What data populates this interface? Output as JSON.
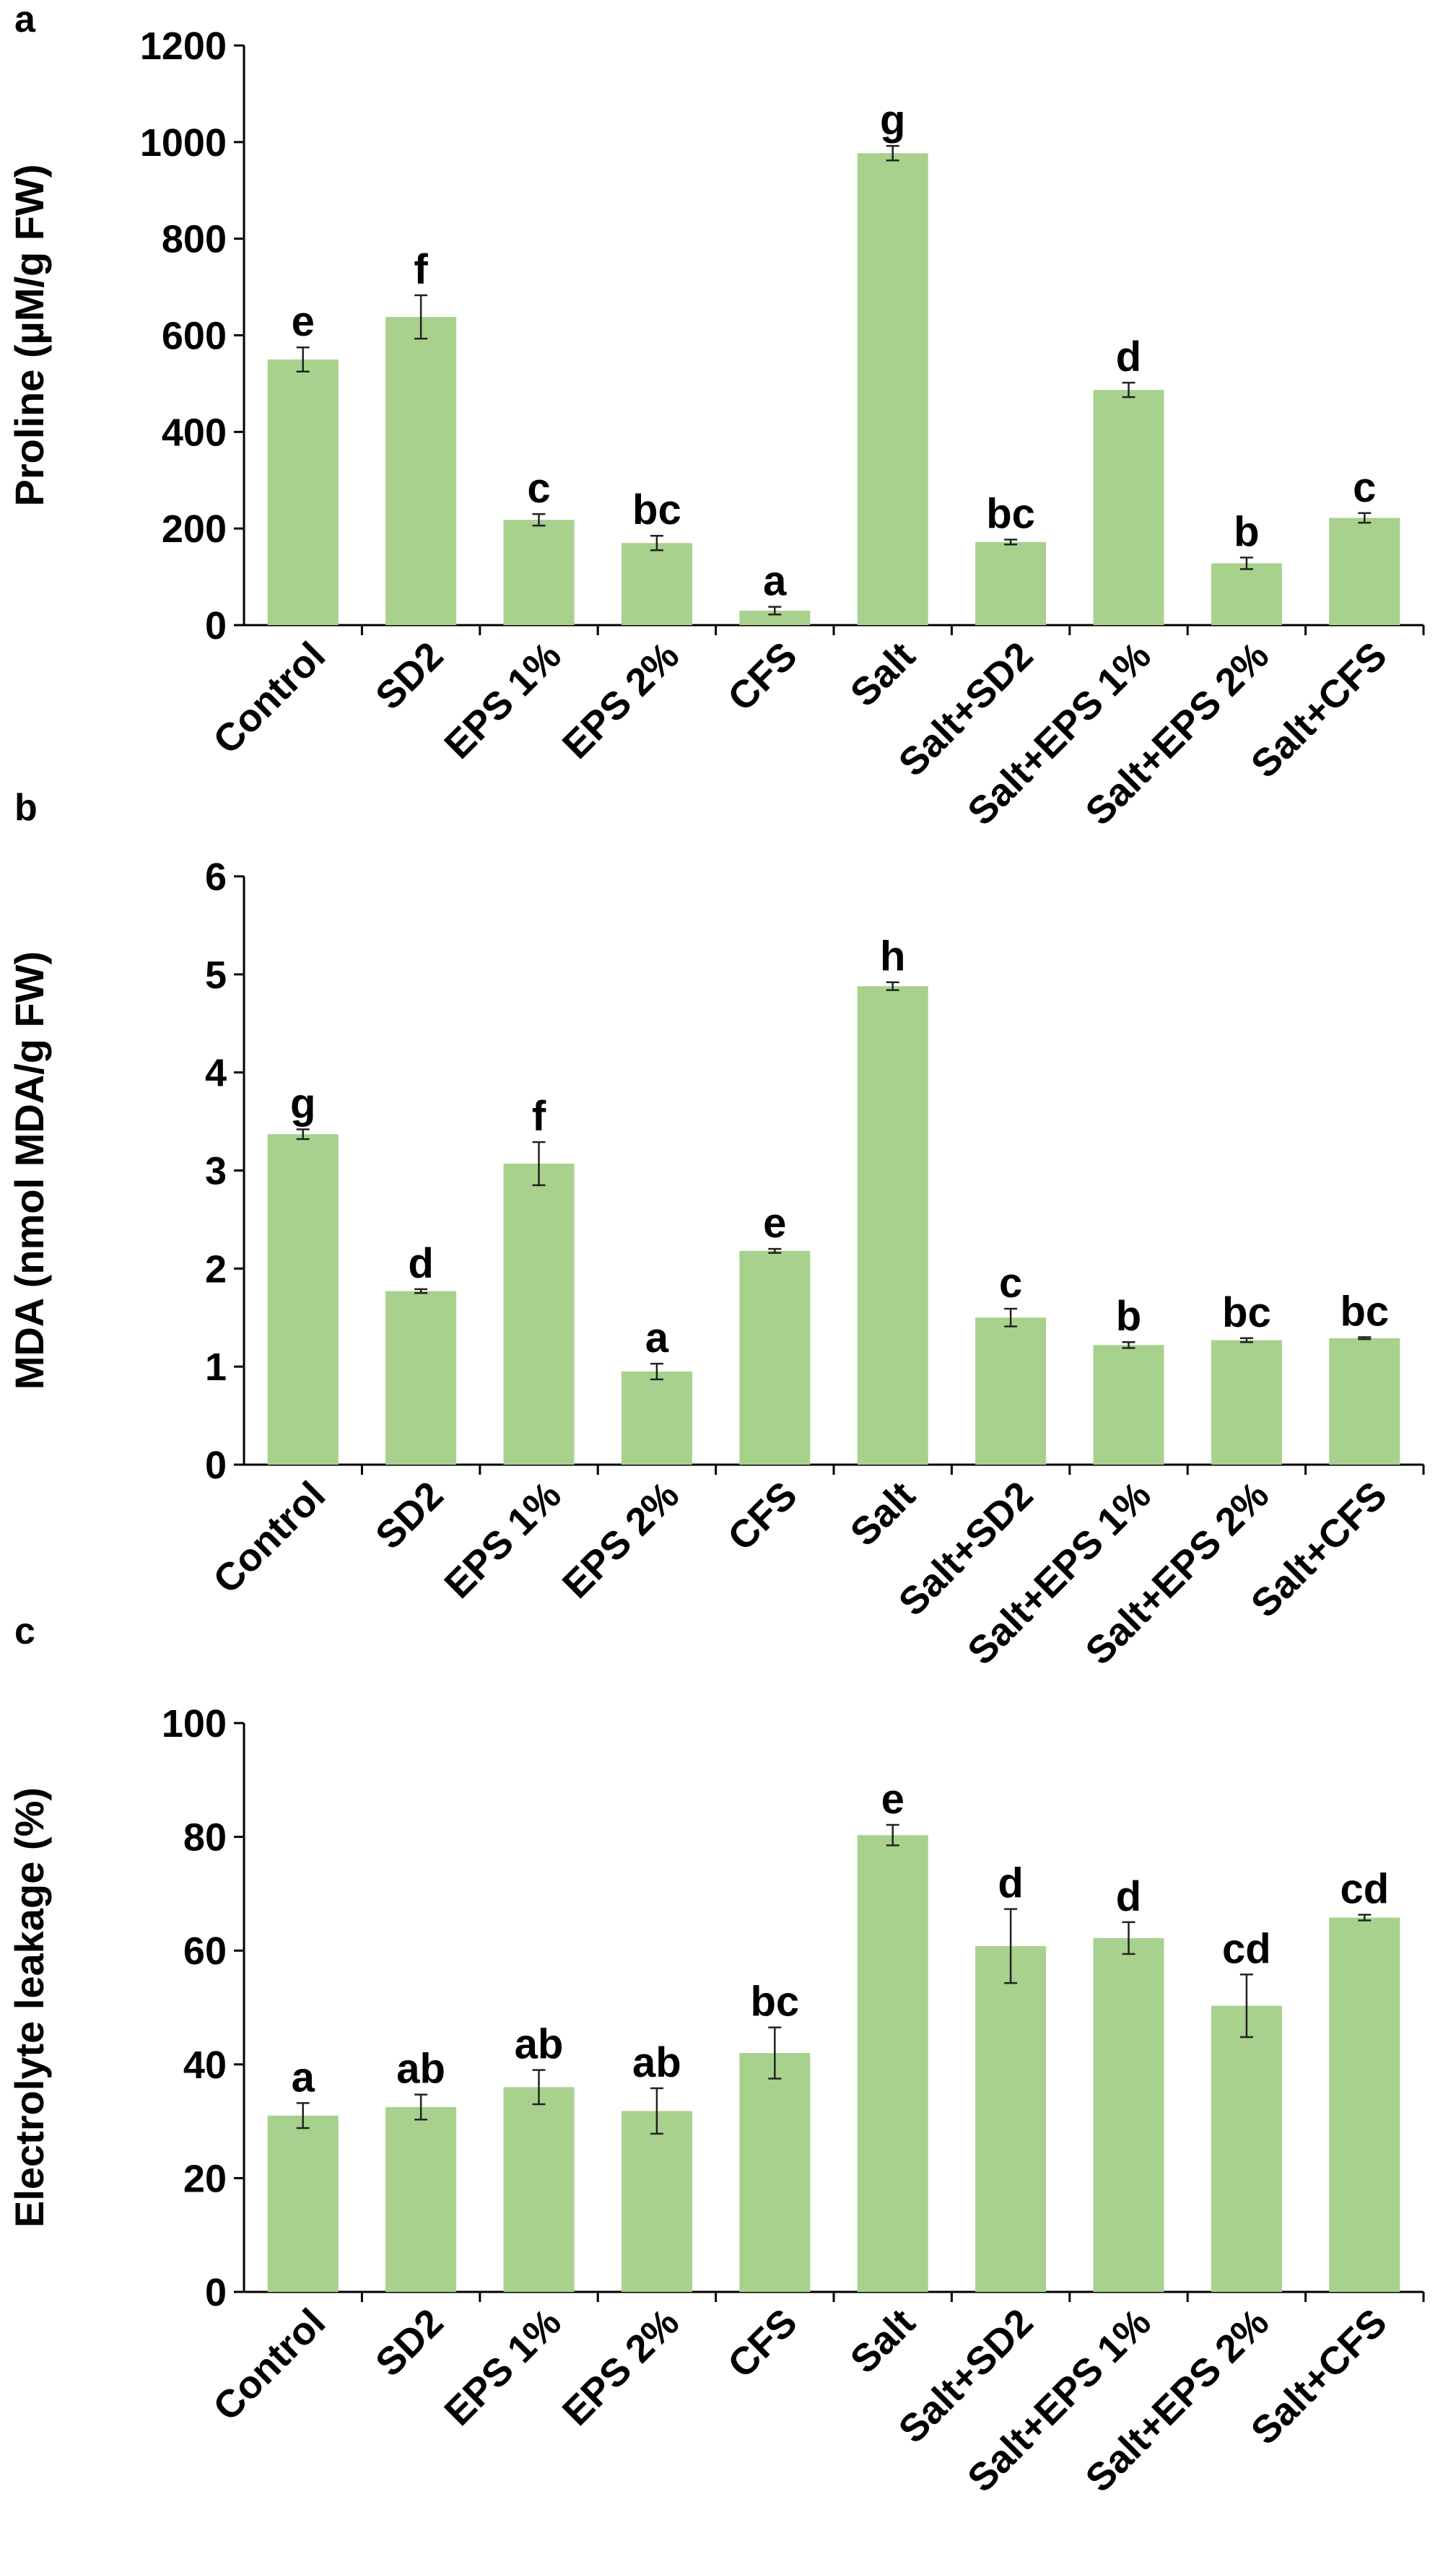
{
  "colors": {
    "bar": "#a9d18e",
    "axis": "#000000",
    "text": "#000000"
  },
  "chart_data": [
    {
      "type": "bar",
      "panel": "a",
      "title": "",
      "ylabel": "Proline (µM/g FW)",
      "xlabel": "",
      "ylim": [
        0,
        1200
      ],
      "yticks": [
        0,
        200,
        400,
        600,
        800,
        1000,
        1200
      ],
      "grid": false,
      "categories": [
        "Control",
        "SD2",
        "EPS 1%",
        "EPS 2%",
        "CFS",
        "Salt",
        "Salt+SD2",
        "Salt+EPS 1%",
        "Salt+EPS 2%",
        "Salt+CFS"
      ],
      "values": [
        550,
        638,
        218,
        170,
        30,
        977,
        172,
        487,
        128,
        222
      ],
      "errors": [
        25,
        45,
        12,
        15,
        8,
        15,
        5,
        15,
        12,
        10
      ],
      "letters": [
        "e",
        "f",
        "c",
        "bc",
        "a",
        "g",
        "bc",
        "d",
        "b",
        "c"
      ]
    },
    {
      "type": "bar",
      "panel": "b",
      "title": "",
      "ylabel": "MDA (nmol MDA/g FW)",
      "xlabel": "",
      "ylim": [
        0,
        6
      ],
      "yticks": [
        0,
        1,
        2,
        3,
        4,
        5,
        6
      ],
      "grid": false,
      "categories": [
        "Control",
        "SD2",
        "EPS 1%",
        "EPS 2%",
        "CFS",
        "Salt",
        "Salt+SD2",
        "Salt+EPS 1%",
        "Salt+EPS 2%",
        "Salt+CFS"
      ],
      "values": [
        3.37,
        1.77,
        3.07,
        0.95,
        2.18,
        4.88,
        1.5,
        1.22,
        1.27,
        1.29
      ],
      "errors": [
        0.05,
        0.02,
        0.22,
        0.08,
        0.02,
        0.04,
        0.09,
        0.03,
        0.02,
        0.01
      ],
      "letters": [
        "g",
        "d",
        "f",
        "a",
        "e",
        "h",
        "c",
        "b",
        "bc",
        "bc"
      ]
    },
    {
      "type": "bar",
      "panel": "c",
      "title": "",
      "ylabel": "Electrolyte leakage (%)",
      "xlabel": "",
      "ylim": [
        0,
        100
      ],
      "yticks": [
        0,
        20,
        40,
        60,
        80,
        100
      ],
      "grid": false,
      "categories": [
        "Control",
        "SD2",
        "EPS 1%",
        "EPS 2%",
        "CFS",
        "Salt",
        "Salt+SD2",
        "Salt+EPS 1%",
        "Salt+EPS 2%",
        "Salt+CFS"
      ],
      "values": [
        31,
        32.5,
        36,
        31.8,
        42,
        80.3,
        60.8,
        62.2,
        50.3,
        65.8
      ],
      "errors": [
        2.2,
        2.2,
        3,
        4,
        4.5,
        1.8,
        6.5,
        2.8,
        5.5,
        0.5
      ],
      "letters": [
        "a",
        "ab",
        "ab",
        "ab",
        "bc",
        "e",
        "d",
        "d",
        "cd",
        "cd"
      ]
    }
  ]
}
